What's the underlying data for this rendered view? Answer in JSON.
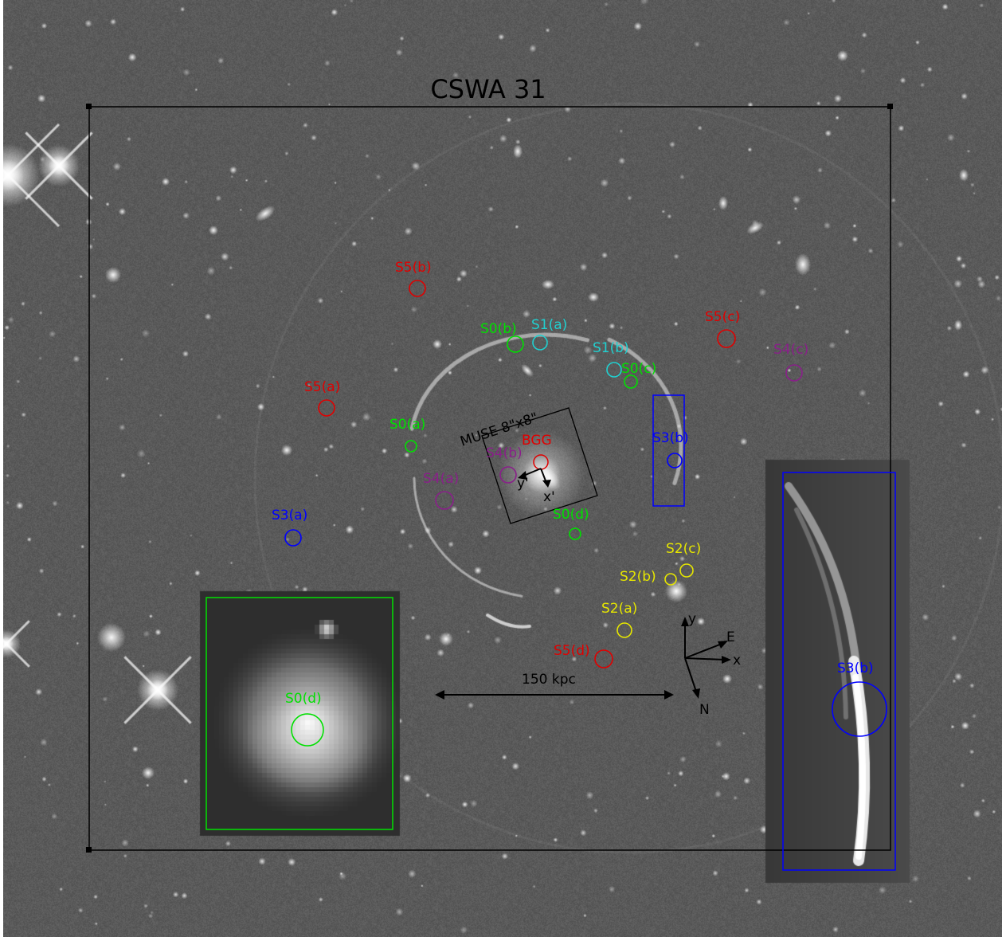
{
  "figure": {
    "title": "CSWA 31",
    "muse_label": "MUSE 8\"x8\"",
    "bgg_label": "BGG",
    "scale_label": "150 kpc",
    "compass": {
      "y": "y",
      "x": "x",
      "e": "E",
      "n": "N"
    },
    "axes_prime": {
      "x": "x'",
      "y": "y'"
    }
  },
  "colors": {
    "background": "#5a5a5a",
    "S0": "#00e000",
    "S1": "#20d0d0",
    "S2": "#e6e600",
    "S3": "#0000ff",
    "S4": "#8a1f8a",
    "S5": "#e00000",
    "BGG": "#e00000",
    "frame": "#000000"
  },
  "sources": [
    {
      "id": "S0(a)",
      "group": "S0"
    },
    {
      "id": "S0(b)",
      "group": "S0"
    },
    {
      "id": "S0(c)",
      "group": "S0"
    },
    {
      "id": "S0(d)",
      "group": "S0"
    },
    {
      "id": "S1(a)",
      "group": "S1"
    },
    {
      "id": "S1(b)",
      "group": "S1"
    },
    {
      "id": "S2(a)",
      "group": "S2"
    },
    {
      "id": "S2(b)",
      "group": "S2"
    },
    {
      "id": "S2(c)",
      "group": "S2"
    },
    {
      "id": "S3(a)",
      "group": "S3"
    },
    {
      "id": "S3(b)",
      "group": "S3"
    },
    {
      "id": "S4(a)",
      "group": "S4"
    },
    {
      "id": "S4(b)",
      "group": "S4"
    },
    {
      "id": "S4(c)",
      "group": "S4"
    },
    {
      "id": "S5(a)",
      "group": "S5"
    },
    {
      "id": "S5(b)",
      "group": "S5"
    },
    {
      "id": "S5(c)",
      "group": "S5"
    },
    {
      "id": "S5(d)",
      "group": "S5"
    }
  ],
  "insets": {
    "left_label": "S0(d)",
    "right_label": "S3(b)"
  }
}
